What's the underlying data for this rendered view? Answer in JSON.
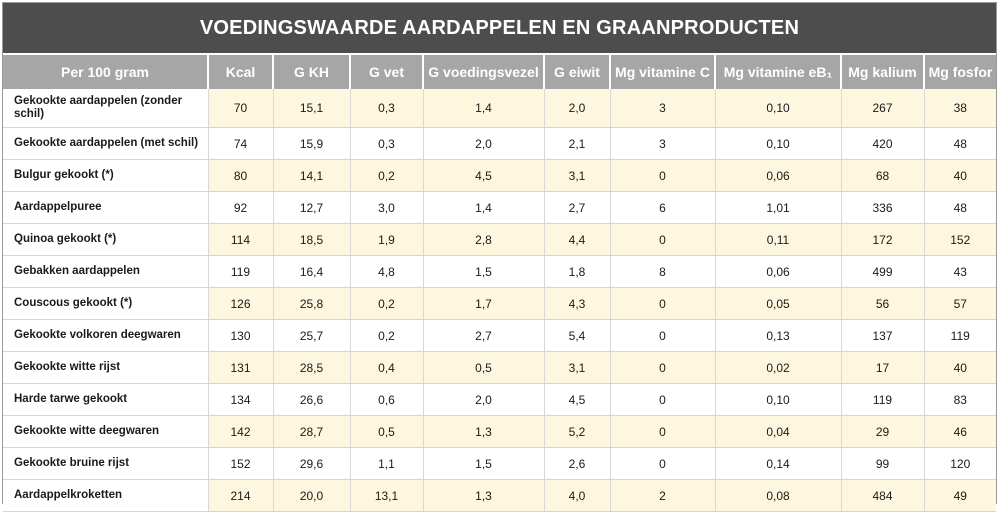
{
  "title": "VOEDINGSWAARDE AARDAPPELEN EN GRAANPRODUCTEN",
  "headers": [
    "Per 100 gram",
    "Kcal",
    "G KH",
    "G vet",
    "G voedingsvezel",
    "G eiwit",
    "Mg vitamine C",
    "Mg vitamine eB₁",
    "Mg kalium",
    "Mg fosfor"
  ],
  "rows": [
    [
      "Gekookte aardappelen (zonder schil)",
      "70",
      "15,1",
      "0,3",
      "1,4",
      "2,0",
      "3",
      "0,10",
      "267",
      "38"
    ],
    [
      "Gekookte aardappelen (met schil)",
      "74",
      "15,9",
      "0,3",
      "2,0",
      "2,1",
      "3",
      "0,10",
      "420",
      "48"
    ],
    [
      "Bulgur gekookt (*)",
      "80",
      "14,1",
      "0,2",
      "4,5",
      "3,1",
      "0",
      "0,06",
      "68",
      "40"
    ],
    [
      "Aardappelpuree",
      "92",
      "12,7",
      "3,0",
      "1,4",
      "2,7",
      "6",
      "1,01",
      "336",
      "48"
    ],
    [
      "Quinoa gekookt (*)",
      "114",
      "18,5",
      "1,9",
      "2,8",
      "4,4",
      "0",
      "0,11",
      "172",
      "152"
    ],
    [
      "Gebakken aardappelen",
      "119",
      "16,4",
      "4,8",
      "1,5",
      "1,8",
      "8",
      "0,06",
      "499",
      "43"
    ],
    [
      "Couscous gekookt (*)",
      "126",
      "25,8",
      "0,2",
      "1,7",
      "4,3",
      "0",
      "0,05",
      "56",
      "57"
    ],
    [
      "Gekookte volkoren deegwaren",
      "130",
      "25,7",
      "0,2",
      "2,7",
      "5,4",
      "0",
      "0,13",
      "137",
      "119"
    ],
    [
      "Gekookte witte rijst",
      "131",
      "28,5",
      "0,4",
      "0,5",
      "3,1",
      "0",
      "0,02",
      "17",
      "40"
    ],
    [
      "Harde tarwe gekookt",
      "134",
      "26,6",
      "0,6",
      "2,0",
      "4,5",
      "0",
      "0,10",
      "119",
      "83"
    ],
    [
      "Gekookte witte deegwaren",
      "142",
      "28,7",
      "0,5",
      "1,3",
      "5,2",
      "0",
      "0,04",
      "29",
      "46"
    ],
    [
      "Gekookte bruine rijst",
      "152",
      "29,6",
      "1,1",
      "1,5",
      "2,6",
      "0",
      "0,14",
      "99",
      "120"
    ],
    [
      "Aardappelkroketten",
      "214",
      "20,0",
      "13,1",
      "1,3",
      "4,0",
      "2",
      "0,08",
      "484",
      "49"
    ]
  ]
}
